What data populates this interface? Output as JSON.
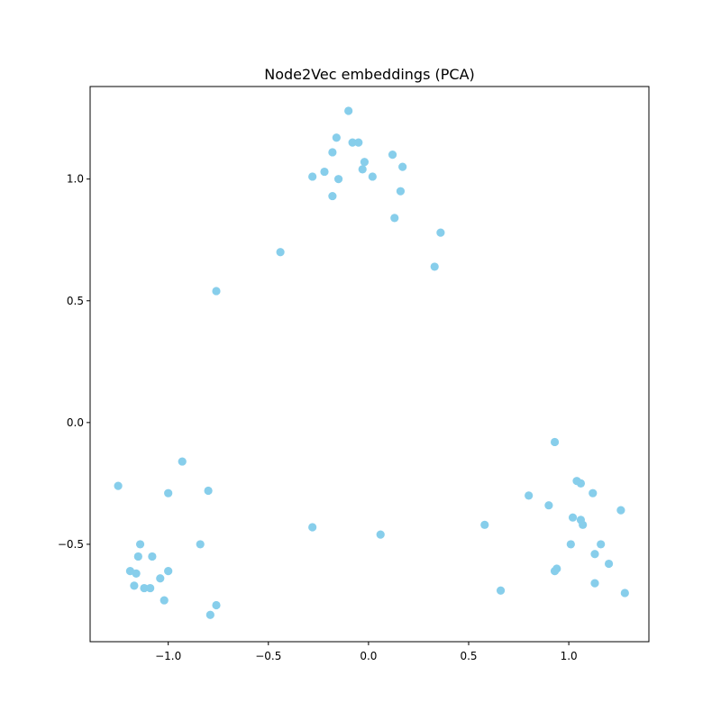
{
  "chart_data": {
    "type": "scatter",
    "title": "Node2Vec embeddings (PCA)",
    "xlabel": "",
    "ylabel": "",
    "xlim": [
      -1.39,
      1.4
    ],
    "ylim": [
      -0.9,
      1.38
    ],
    "x_ticks": [
      -1.0,
      -0.5,
      0.0,
      0.5,
      1.0
    ],
    "x_tick_labels": [
      "−1.0",
      "−0.5",
      "0.0",
      "0.5",
      "1.0"
    ],
    "y_ticks": [
      -0.5,
      0.0,
      0.5,
      1.0
    ],
    "y_tick_labels": [
      "−0.5",
      "0.0",
      "0.5",
      "1.0"
    ],
    "grid": false,
    "marker_color": "#87CEEB",
    "series": [
      {
        "points": [
          [
            -0.1,
            1.28
          ],
          [
            -0.16,
            1.17
          ],
          [
            -0.08,
            1.15
          ],
          [
            -0.05,
            1.15
          ],
          [
            -0.18,
            1.11
          ],
          [
            0.12,
            1.1
          ],
          [
            -0.02,
            1.07
          ],
          [
            0.17,
            1.05
          ],
          [
            -0.03,
            1.04
          ],
          [
            -0.22,
            1.03
          ],
          [
            -0.28,
            1.01
          ],
          [
            0.02,
            1.01
          ],
          [
            -0.15,
            1.0
          ],
          [
            0.16,
            0.95
          ],
          [
            -0.18,
            0.93
          ],
          [
            0.13,
            0.84
          ],
          [
            0.36,
            0.78
          ],
          [
            -0.44,
            0.7
          ],
          [
            0.33,
            0.64
          ],
          [
            -0.76,
            0.54
          ],
          [
            -1.25,
            -0.26
          ],
          [
            -0.93,
            -0.16
          ],
          [
            -1.0,
            -0.29
          ],
          [
            -0.8,
            -0.28
          ],
          [
            -0.84,
            -0.5
          ],
          [
            -1.14,
            -0.5
          ],
          [
            -1.15,
            -0.55
          ],
          [
            -1.08,
            -0.55
          ],
          [
            -1.19,
            -0.61
          ],
          [
            -1.16,
            -0.62
          ],
          [
            -1.0,
            -0.61
          ],
          [
            -1.04,
            -0.64
          ],
          [
            -1.17,
            -0.67
          ],
          [
            -1.12,
            -0.68
          ],
          [
            -1.09,
            -0.68
          ],
          [
            -1.02,
            -0.73
          ],
          [
            -0.76,
            -0.75
          ],
          [
            -0.79,
            -0.79
          ],
          [
            -0.28,
            -0.43
          ],
          [
            0.06,
            -0.46
          ],
          [
            0.93,
            -0.08
          ],
          [
            1.04,
            -0.24
          ],
          [
            1.06,
            -0.25
          ],
          [
            1.12,
            -0.29
          ],
          [
            0.8,
            -0.3
          ],
          [
            0.9,
            -0.34
          ],
          [
            1.26,
            -0.36
          ],
          [
            1.02,
            -0.39
          ],
          [
            1.06,
            -0.4
          ],
          [
            1.07,
            -0.42
          ],
          [
            0.58,
            -0.42
          ],
          [
            1.01,
            -0.5
          ],
          [
            1.16,
            -0.5
          ],
          [
            1.13,
            -0.54
          ],
          [
            1.2,
            -0.58
          ],
          [
            0.94,
            -0.6
          ],
          [
            0.93,
            -0.61
          ],
          [
            1.13,
            -0.66
          ],
          [
            0.66,
            -0.69
          ],
          [
            1.28,
            -0.7
          ]
        ]
      }
    ]
  }
}
